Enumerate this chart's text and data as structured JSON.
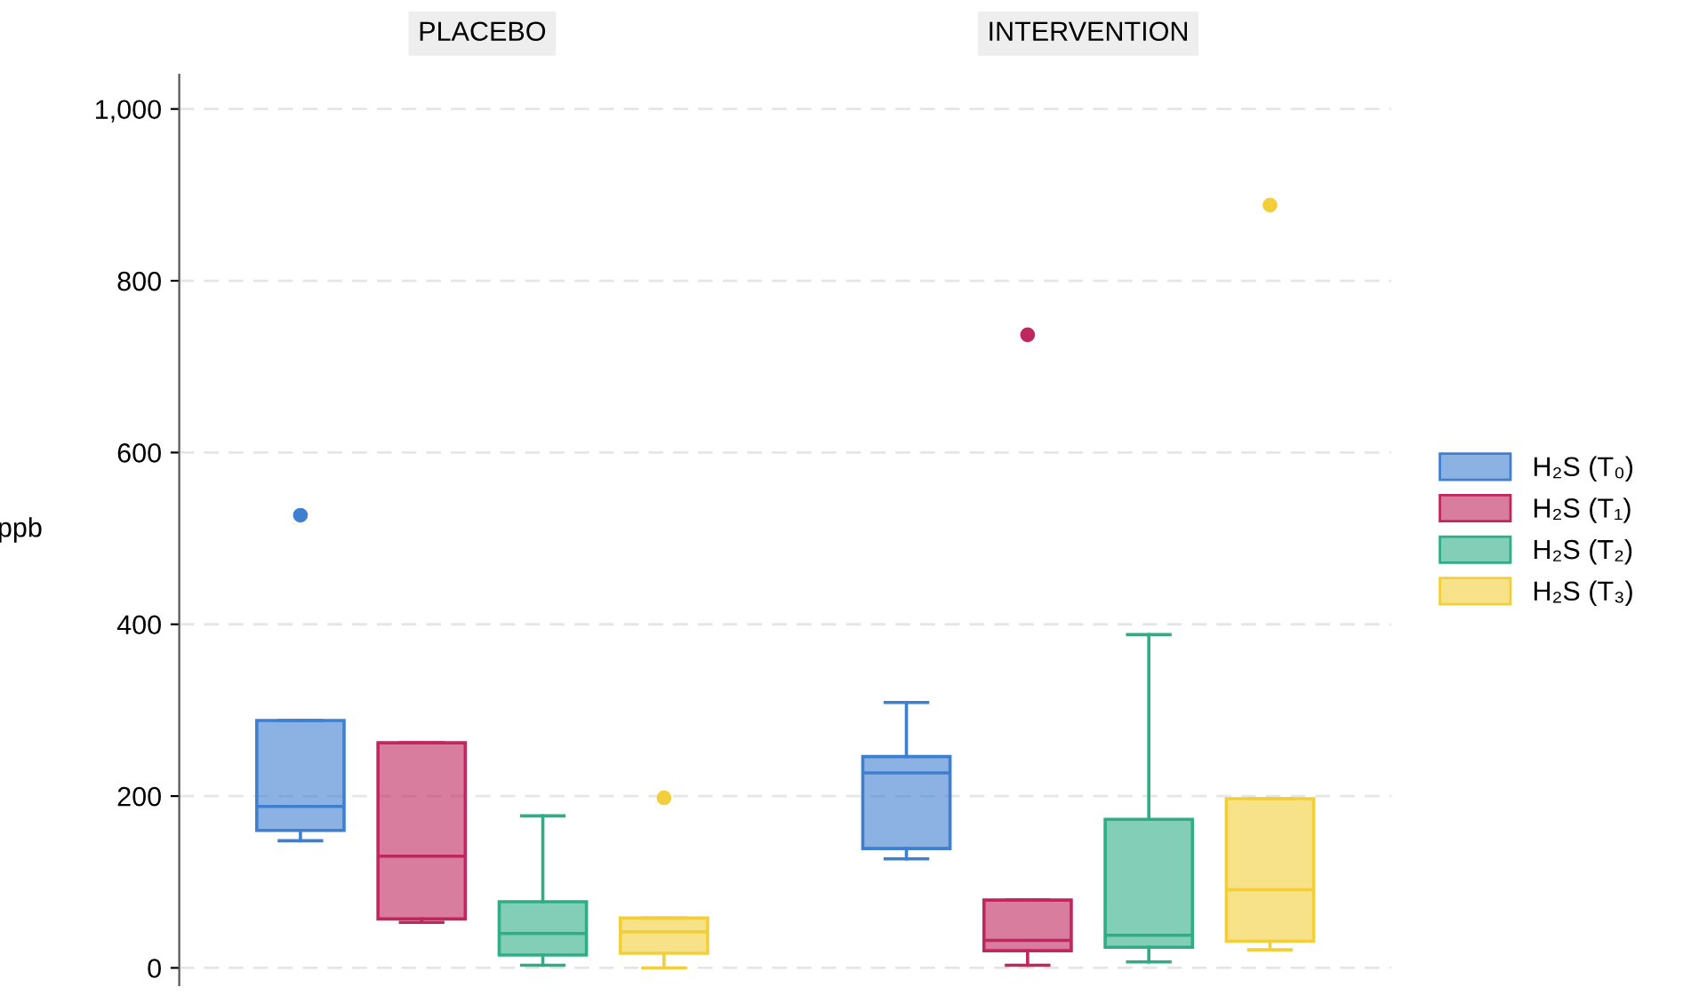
{
  "chart_data": {
    "type": "box",
    "ylabel": "ppb",
    "categories": [
      "PLACEBO",
      "INTERVENTION"
    ],
    "ylim": [
      -20,
      1040
    ],
    "yticks": [
      0,
      200,
      400,
      600,
      800,
      {
        "value": 1000,
        "label": "1,000"
      }
    ],
    "grid": "y",
    "legend": "right",
    "series": [
      {
        "name": "H₂S (T₀)",
        "color": "#3f7fd0",
        "boxes": [
          {
            "low": 148,
            "q1": 160,
            "median": 188,
            "q3": 288,
            "high": 288,
            "outliers": [
              527
            ]
          },
          {
            "low": 127,
            "q1": 139,
            "median": 227,
            "q3": 246,
            "high": 309
          }
        ]
      },
      {
        "name": "H₂S (T₁)",
        "color": "#c0275f",
        "boxes": [
          {
            "low": 53,
            "q1": 57,
            "median": 130,
            "q3": 262,
            "high": 262
          },
          {
            "low": 3,
            "q1": 20,
            "median": 32,
            "q3": 79,
            "high": 79,
            "outliers": [
              737
            ]
          }
        ]
      },
      {
        "name": "H₂S (T₂)",
        "color": "#2fae86",
        "boxes": [
          {
            "low": 3,
            "q1": 15,
            "median": 40,
            "q3": 77,
            "high": 177
          },
          {
            "low": 7,
            "q1": 24,
            "median": 38,
            "q3": 173,
            "high": 388
          }
        ]
      },
      {
        "name": "H₂S (T₃)",
        "color": "#f2cf3a",
        "boxes": [
          {
            "low": 0,
            "q1": 17,
            "median": 42,
            "q3": 58,
            "high": 58,
            "outliers": [
              198
            ]
          },
          {
            "low": 21,
            "q1": 31,
            "median": 91,
            "q3": 197,
            "high": 197,
            "outliers": [
              888
            ]
          }
        ]
      }
    ]
  }
}
